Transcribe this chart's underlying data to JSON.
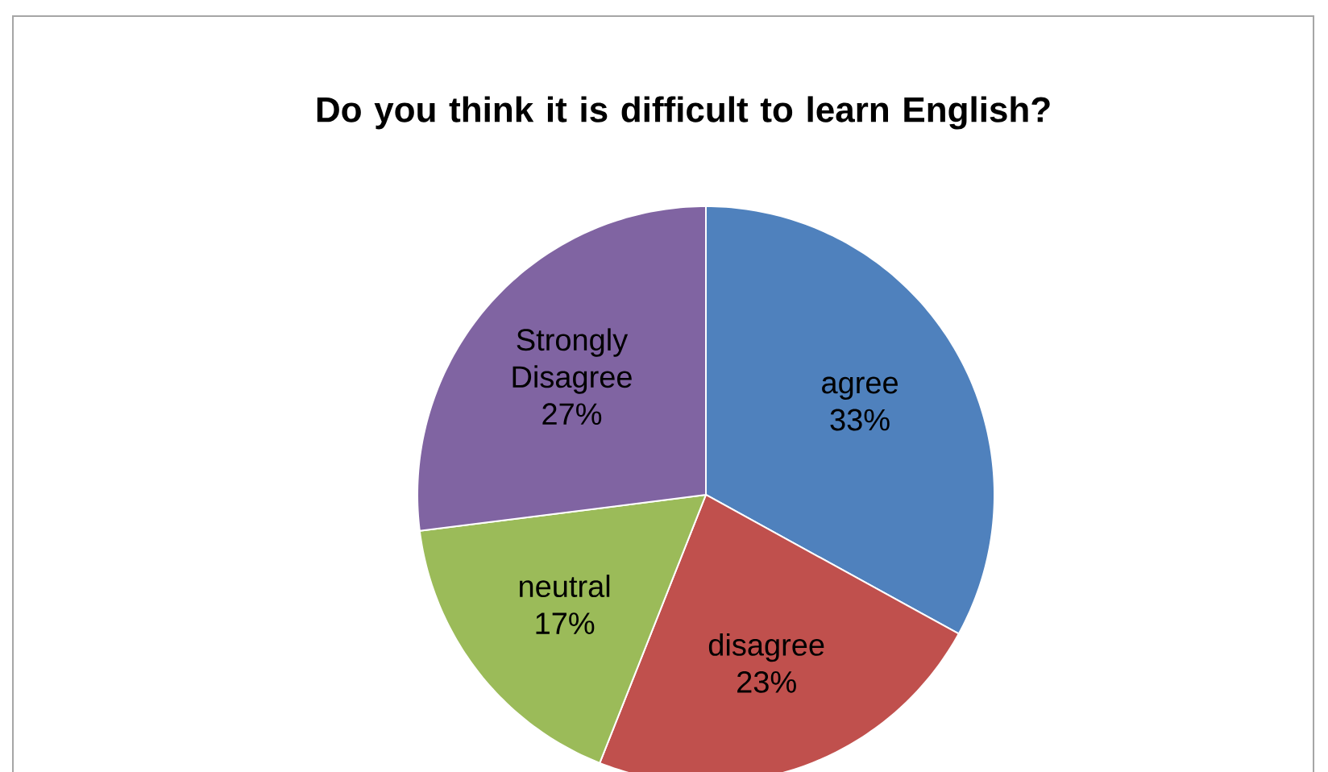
{
  "chart_data": {
    "type": "pie",
    "title": "Do you  think it is  difficult  to learn English?",
    "categories": [
      "agree",
      "disagree",
      "neutral",
      "Strongly Disagree"
    ],
    "values": [
      33,
      23,
      17,
      27
    ],
    "value_labels": [
      "33%",
      "23%",
      "17%",
      "27%"
    ],
    "colors": [
      "#4f81bd",
      "#c0504d",
      "#9bbb59",
      "#8064a2"
    ]
  }
}
